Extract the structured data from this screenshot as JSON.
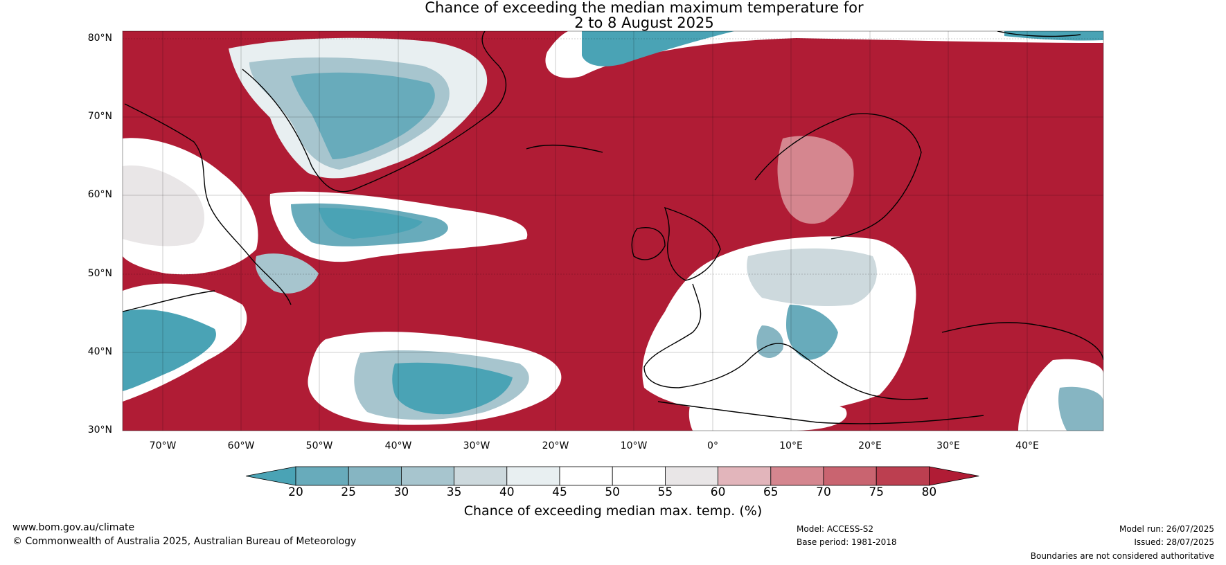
{
  "title": {
    "line1": "Chance of exceeding the median maximum temperature for",
    "line2": "2 to 8 August 2025"
  },
  "lat_labels": [
    "80°N",
    "70°N",
    "60°N",
    "50°N",
    "40°N",
    "30°N"
  ],
  "lon_labels": [
    "70°W",
    "60°W",
    "50°W",
    "40°W",
    "30°W",
    "20°W",
    "10°W",
    "0°",
    "10°E",
    "20°E",
    "30°E",
    "40°E"
  ],
  "colorbar": {
    "ticks": [
      "20",
      "25",
      "30",
      "35",
      "40",
      "45",
      "50",
      "55",
      "60",
      "65",
      "70",
      "75",
      "80"
    ],
    "colors": [
      "#4aa3b5",
      "#68abbb",
      "#86b5c2",
      "#a7c5ce",
      "#cdd9dd",
      "#e8eff1",
      "#ffffff",
      "#ffffff",
      "#e9e6e7",
      "#e2b5bb",
      "#d5868f",
      "#c96470",
      "#bc3f50",
      "#b01c35"
    ],
    "label": "Chance of exceeding median max. temp. (%)"
  },
  "footer": {
    "website": "www.bom.gov.au/climate",
    "copyright": "© Commonwealth of Australia 2025, Australian Bureau of Meteorology",
    "model": "Model: ACCESS-S2",
    "base_period": "Base period: 1981-2018",
    "model_run": "Model run: 26/07/2025",
    "issued": "Issued: 28/07/2025",
    "disclaimer": "Boundaries are not considered authoritative"
  }
}
